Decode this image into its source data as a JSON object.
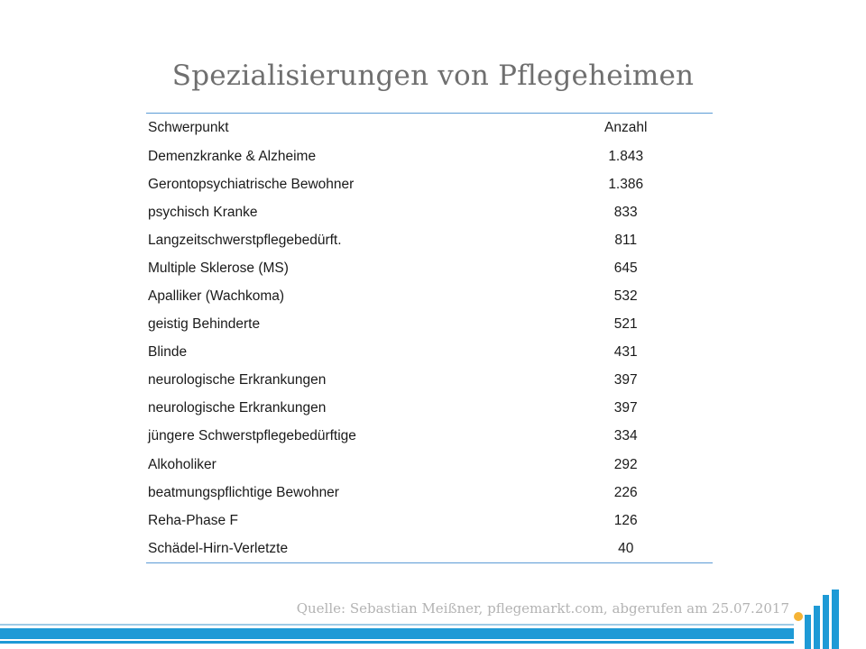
{
  "title": "Spezialisierungen von Pflegeheimen",
  "table": {
    "headers": [
      "Schwerpunkt",
      "Anzahl"
    ],
    "rows": [
      [
        "Demenzkranke & Alzheime",
        "1.843"
      ],
      [
        "Gerontopsychiatrische Bewohner",
        "1.386"
      ],
      [
        "psychisch Kranke",
        "833"
      ],
      [
        "Langzeitschwerstpflegebedürft.",
        "811"
      ],
      [
        "Multiple Sklerose (MS)",
        "645"
      ],
      [
        "Apalliker (Wachkoma)",
        "532"
      ],
      [
        "geistig Behinderte",
        "521"
      ],
      [
        "Blinde",
        "431"
      ],
      [
        "neurologische Erkrankungen",
        "397"
      ],
      [
        "neurologische Erkrankungen",
        "397"
      ],
      [
        "jüngere Schwerstpflegebedürftige",
        "334"
      ],
      [
        "Alkoholiker",
        "292"
      ],
      [
        "beatmungspflichtige Bewohner",
        "226"
      ],
      [
        "Reha-Phase F",
        "126"
      ],
      [
        "Schädel-Hirn-Verletzte",
        "40"
      ]
    ]
  },
  "source": "Quelle: Sebastian Meißner, pflegemarkt.com, abgerufen am 25.07.2017",
  "colors": {
    "accent": "#1e9ad6",
    "rule": "#5b9bd5",
    "logo_dot": "#f5b335"
  },
  "logo_icon": "pflegemarkt-bars-logo"
}
